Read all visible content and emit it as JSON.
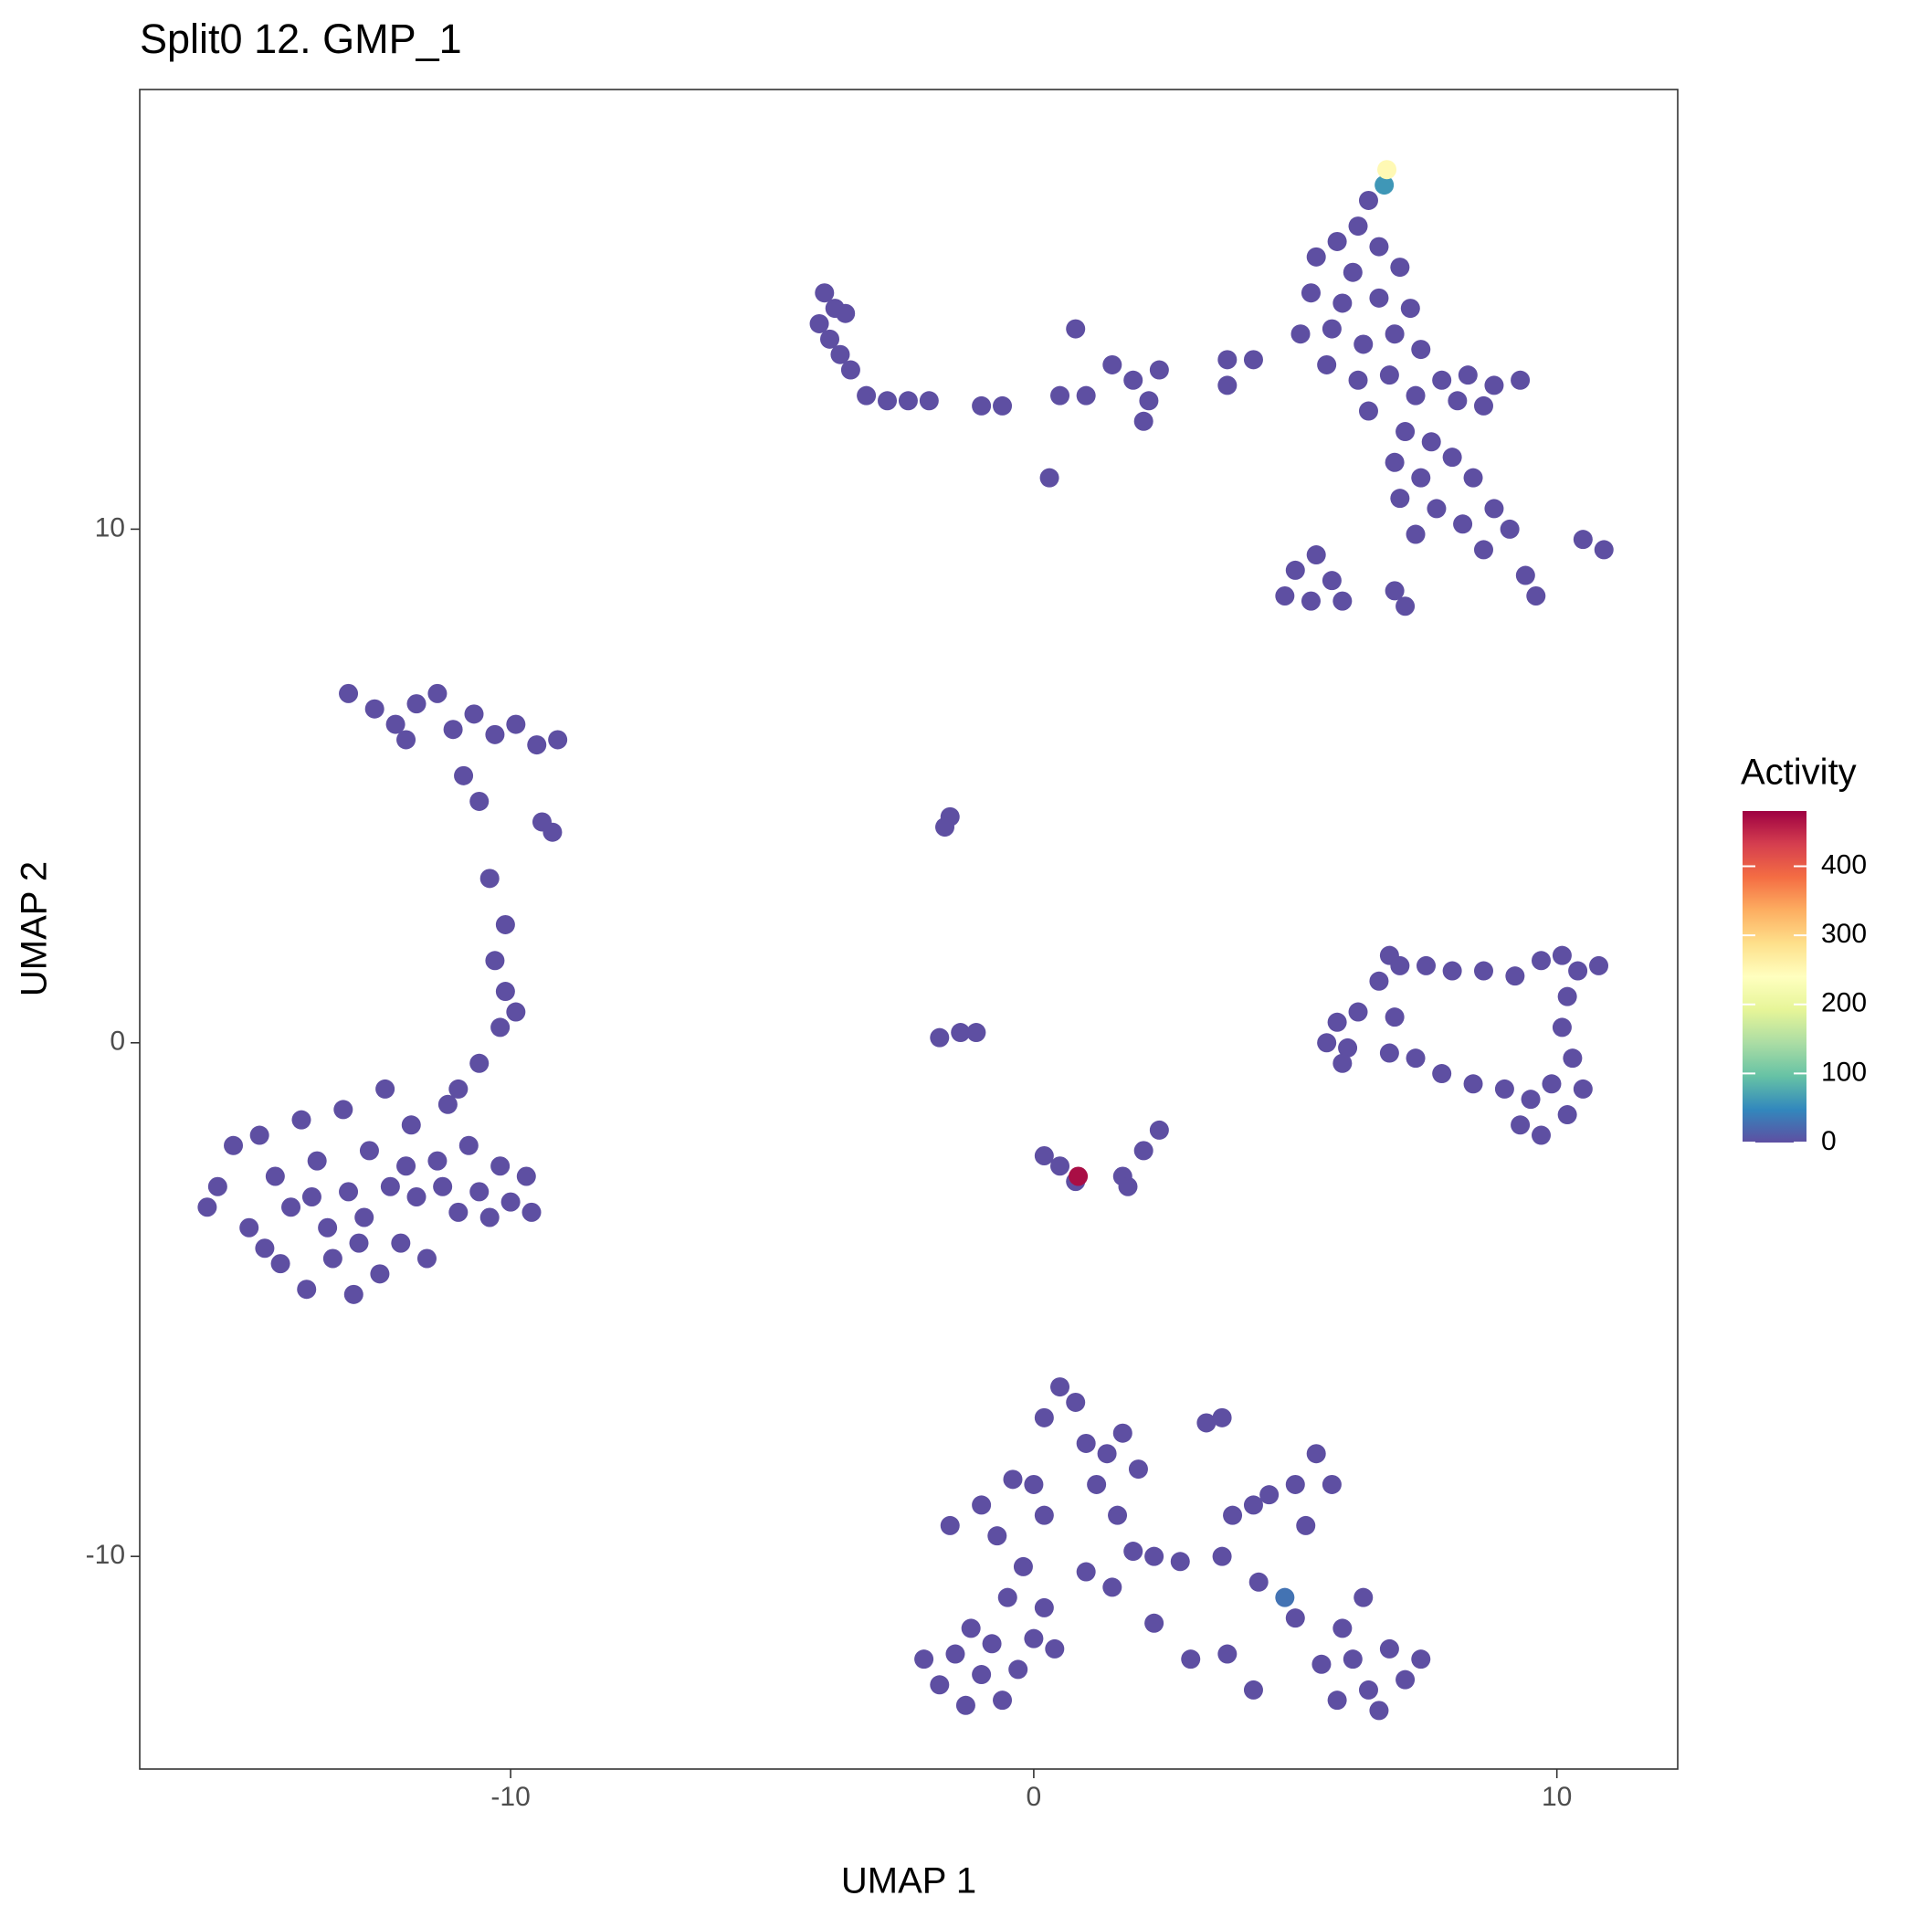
{
  "chart_data": {
    "type": "scatter",
    "title": "Split0 12. GMP_1",
    "x_label": "UMAP 1",
    "y_label": "UMAP 2",
    "legend_title": "Activity",
    "xlim": [
      -17.09,
      12.31
    ],
    "ylim": [
      -14.14,
      18.56
    ],
    "xticks": [
      -10,
      0,
      10
    ],
    "yticks": [
      -10,
      0,
      10
    ],
    "color_lim": [
      0,
      480
    ],
    "color_ticks": [
      0,
      100,
      200,
      300,
      400
    ],
    "colorscale": [
      "#5E4FA2",
      "#3288BD",
      "#66C2A5",
      "#ABDDA4",
      "#E6F598",
      "#FFFFBF",
      "#FEE08B",
      "#FDAE61",
      "#F46D43",
      "#D53E4F",
      "#9E0142"
    ],
    "grid": false,
    "x": [
      -15.6,
      -15.3,
      -15.0,
      -14.8,
      -14.5,
      -14.4,
      -14.2,
      -14.0,
      -13.9,
      -13.7,
      -13.5,
      -13.4,
      -13.2,
      -13.1,
      -13.0,
      -12.8,
      -12.7,
      -12.5,
      -12.4,
      -12.3,
      -12.1,
      -11.9,
      -11.8,
      -11.6,
      -11.4,
      -11.2,
      -11.0,
      -10.8,
      -10.6,
      -10.4,
      -10.2,
      -10.0,
      -9.7,
      -9.6,
      -15.8,
      -14.7,
      -13.8,
      -12.9,
      -12.0,
      -11.3,
      -11.0,
      -10.6,
      -10.2,
      -9.9,
      -10.1,
      -10.3,
      -10.1,
      -10.4,
      -13.1,
      -12.6,
      -12.2,
      -11.8,
      -11.4,
      -11.1,
      -10.7,
      -10.3,
      -9.9,
      -9.5,
      -9.1,
      -12.0,
      -10.9,
      -10.6,
      -9.4,
      -9.2,
      -4.0,
      -3.8,
      -4.1,
      -3.6,
      -3.9,
      -3.7,
      -3.5,
      -3.2,
      -2.8,
      -2.4,
      -2.0,
      -1.0,
      -0.6,
      0.8,
      0.5,
      1.0,
      1.5,
      1.9,
      2.2,
      2.4,
      2.1,
      0.3,
      3.7,
      4.2,
      3.7,
      6.4,
      6.2,
      5.8,
      6.6,
      5.4,
      6.1,
      7.0,
      5.3,
      5.9,
      6.6,
      7.2,
      5.1,
      5.7,
      6.3,
      6.9,
      7.4,
      5.6,
      6.2,
      6.8,
      7.3,
      7.8,
      8.3,
      8.8,
      9.3,
      8.1,
      8.6,
      6.4,
      7.1,
      7.6,
      6.9,
      7.4,
      8.0,
      8.4,
      7.0,
      7.7,
      8.2,
      8.8,
      9.1,
      7.3,
      8.6,
      5.0,
      5.4,
      5.7,
      4.8,
      5.3,
      5.9,
      6.9,
      7.1,
      9.4,
      9.6,
      10.5,
      10.9,
      -1.6,
      -1.7,
      -1.8,
      -1.4,
      -1.1,
      0.2,
      0.5,
      0.8,
      1.7,
      1.8,
      2.1,
      2.4,
      5.6,
      5.8,
      6.0,
      6.2,
      5.9,
      6.6,
      6.8,
      7.0,
      6.9,
      7.5,
      8.0,
      8.6,
      9.2,
      9.7,
      10.1,
      10.4,
      10.8,
      10.2,
      10.1,
      10.3,
      9.9,
      9.5,
      10.2,
      9.7,
      10.5,
      9.0,
      8.4,
      7.8,
      7.3,
      6.8,
      9.3,
      -2.1,
      -1.8,
      -1.5,
      -1.3,
      -1.0,
      -0.8,
      -0.6,
      -0.3,
      0.0,
      -1.2,
      -0.5,
      -0.2,
      0.2,
      0.4,
      -0.7,
      -1.0,
      -0.4,
      0.0,
      -1.6,
      0.2,
      0.5,
      0.8,
      0.2,
      1.0,
      1.4,
      1.7,
      1.2,
      2.0,
      1.6,
      1.9,
      1.5,
      1.0,
      2.3,
      2.8,
      2.3,
      3.0,
      3.3,
      3.6,
      3.8,
      4.2,
      3.6,
      4.3,
      3.7,
      4.2,
      4.5,
      5.0,
      5.4,
      5.7,
      5.2,
      5.5,
      5.9,
      6.1,
      6.4,
      6.8,
      7.1,
      7.4,
      6.6,
      5.8,
      6.3,
      5.0,
      4.8,
      6.7,
      6.75,
      0.85
    ],
    "y": [
      -2.8,
      -2.0,
      -3.6,
      -1.8,
      -2.6,
      -4.3,
      -3.2,
      -1.5,
      -4.8,
      -2.3,
      -3.6,
      -4.2,
      -1.3,
      -2.9,
      -4.9,
      -3.4,
      -2.1,
      -4.5,
      -0.9,
      -2.8,
      -3.9,
      -1.6,
      -3.0,
      -4.2,
      -2.3,
      -1.2,
      -3.3,
      -2.0,
      -2.9,
      -3.4,
      -2.4,
      -3.1,
      -2.6,
      -3.3,
      -3.2,
      -4.0,
      -3.0,
      -3.9,
      -2.4,
      -2.8,
      -0.9,
      -0.4,
      0.3,
      0.6,
      1.0,
      1.6,
      2.3,
      3.2,
      6.8,
      6.5,
      6.2,
      6.6,
      6.8,
      6.1,
      6.4,
      6.0,
      6.2,
      5.8,
      5.9,
      5.9,
      5.2,
      4.7,
      4.3,
      4.1,
      14.6,
      14.3,
      14.0,
      14.2,
      13.7,
      13.4,
      13.1,
      12.6,
      12.5,
      12.5,
      12.5,
      12.4,
      12.4,
      13.9,
      12.6,
      12.6,
      13.2,
      12.9,
      12.5,
      13.1,
      12.1,
      11.0,
      13.3,
      13.3,
      12.8,
      16.4,
      15.9,
      15.6,
      15.5,
      15.3,
      15.0,
      15.1,
      14.6,
      14.4,
      14.5,
      14.3,
      13.8,
      13.9,
      13.6,
      13.8,
      13.5,
      13.2,
      12.9,
      13.0,
      12.6,
      12.9,
      13.0,
      12.8,
      12.9,
      12.5,
      12.4,
      12.3,
      11.9,
      11.7,
      11.3,
      11.0,
      11.4,
      11.0,
      10.6,
      10.4,
      10.1,
      10.4,
      10.0,
      9.9,
      9.6,
      9.2,
      9.5,
      9.0,
      8.7,
      8.6,
      8.6,
      8.8,
      8.5,
      9.1,
      8.7,
      9.8,
      9.6,
      4.4,
      4.2,
      0.1,
      0.2,
      0.2,
      -2.2,
      -2.4,
      -2.7,
      -2.6,
      -2.8,
      -2.1,
      -1.7,
      0.0,
      0.4,
      -0.1,
      0.6,
      -0.4,
      1.2,
      1.7,
      1.5,
      0.5,
      1.5,
      1.4,
      1.4,
      1.3,
      1.6,
      1.7,
      1.4,
      1.5,
      0.9,
      0.3,
      -0.3,
      -0.8,
      -1.1,
      -1.4,
      -1.8,
      -0.9,
      -0.9,
      -0.8,
      -0.6,
      -0.3,
      -0.2,
      -1.6,
      -12.0,
      -12.5,
      -11.9,
      -12.9,
      -12.3,
      -11.7,
      -12.8,
      -12.2,
      -11.6,
      -11.4,
      -10.8,
      -10.2,
      -11.0,
      -11.8,
      -9.6,
      -9.0,
      -8.5,
      -8.6,
      -9.4,
      -7.3,
      -6.7,
      -7.0,
      -9.2,
      -7.8,
      -8.0,
      -7.6,
      -8.6,
      -8.3,
      -9.2,
      -9.9,
      -10.6,
      -10.3,
      -10.0,
      -10.1,
      -11.3,
      -12.0,
      -7.4,
      -7.3,
      -9.2,
      -9.0,
      -10.0,
      -10.5,
      -11.9,
      -12.6,
      -8.8,
      -8.6,
      -8.0,
      -8.6,
      -9.4,
      -12.1,
      -11.4,
      -12.0,
      -12.6,
      -11.8,
      -12.4,
      -12.0,
      -13.0,
      -12.8,
      -10.8,
      -11.2,
      -10.8,
      16.7,
      17.0,
      -2.6
    ],
    "activity": [
      0,
      0,
      0,
      0,
      0,
      0,
      0,
      0,
      0,
      0,
      0,
      0,
      0,
      0,
      0,
      0,
      0,
      0,
      0,
      0,
      0,
      0,
      0,
      0,
      0,
      0,
      0,
      0,
      0,
      0,
      0,
      0,
      0,
      0,
      0,
      0,
      0,
      0,
      0,
      0,
      0,
      0,
      0,
      0,
      0,
      0,
      0,
      0,
      0,
      0,
      0,
      0,
      0,
      0,
      0,
      0,
      0,
      0,
      0,
      0,
      0,
      0,
      0,
      0,
      0,
      0,
      0,
      0,
      0,
      0,
      0,
      0,
      0,
      0,
      0,
      0,
      0,
      0,
      0,
      0,
      0,
      0,
      0,
      0,
      0,
      0,
      0,
      0,
      0,
      0,
      0,
      0,
      0,
      0,
      0,
      0,
      0,
      0,
      0,
      0,
      0,
      0,
      0,
      0,
      0,
      0,
      0,
      0,
      0,
      0,
      0,
      0,
      0,
      0,
      0,
      0,
      0,
      0,
      0,
      0,
      0,
      0,
      0,
      0,
      0,
      0,
      0,
      0,
      0,
      0,
      0,
      0,
      0,
      0,
      0,
      0,
      0,
      0,
      0,
      0,
      0,
      0,
      0,
      0,
      0,
      0,
      0,
      0,
      0,
      0,
      0,
      0,
      0,
      0,
      0,
      0,
      0,
      0,
      0,
      0,
      0,
      0,
      0,
      0,
      0,
      0,
      0,
      0,
      0,
      0,
      0,
      0,
      0,
      0,
      0,
      0,
      0,
      0,
      0,
      0,
      0,
      0,
      0,
      0,
      0,
      0,
      0,
      0,
      0,
      0,
      0,
      0,
      0,
      0,
      0,
      0,
      0,
      0,
      0,
      0,
      0,
      0,
      0,
      0,
      0,
      0,
      0,
      0,
      0,
      0,
      0,
      0,
      0,
      0,
      0,
      0,
      0,
      0,
      0,
      0,
      0,
      0,
      0,
      0,
      0,
      0,
      0,
      0,
      0,
      0,
      0,
      0,
      0,
      0,
      0,
      0,
      0,
      0,
      0,
      0,
      0,
      0,
      0,
      0,
      30,
      60,
      250,
      470
    ]
  }
}
